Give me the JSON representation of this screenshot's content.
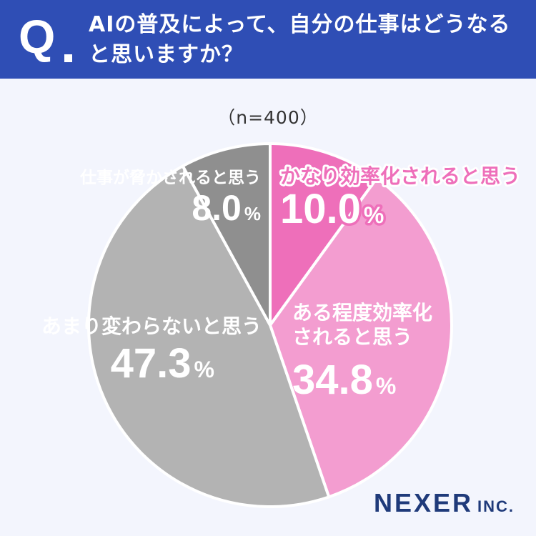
{
  "header": {
    "q_mark": "Q",
    "question": "AIの普及によって、自分の仕事はどうなると思いますか？"
  },
  "sample_size": "（n=400）",
  "brand": {
    "name": "NEXER",
    "suffix": "INC."
  },
  "chart_data": {
    "type": "pie",
    "title": "AIの普及によって、自分の仕事はどうなると思いますか？",
    "categories": [
      "かなり効率化されると思う",
      "ある程度効率化されると思う",
      "あまり変わらないと思う",
      "仕事が脅かされると思う"
    ],
    "values": [
      10.0,
      34.8,
      47.3,
      8.0
    ],
    "value_labels": [
      "10.0",
      "34.8",
      "47.3",
      "8.0"
    ],
    "percent_sign": "%",
    "colors": [
      "#ee6fba",
      "#f39dd0",
      "#b3b3b3",
      "#8f8f8f"
    ],
    "start": "12 o'clock, clockwise"
  }
}
